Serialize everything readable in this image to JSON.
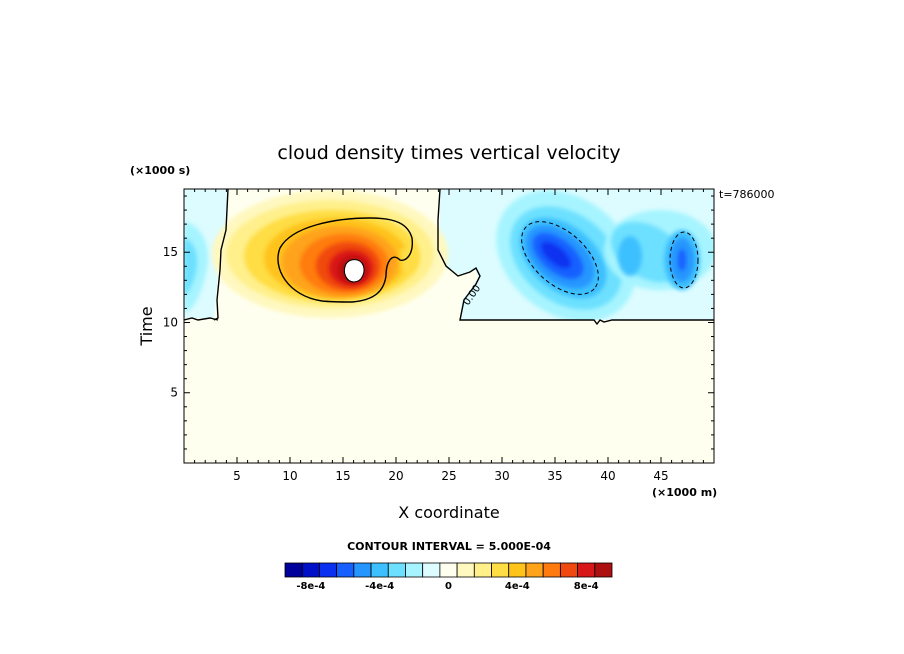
{
  "chart_data": {
    "type": "heatmap",
    "title": "cloud density times vertical velocity",
    "xlabel": "X coordinate",
    "ylabel": "Time",
    "x_units": "(×1000 m)",
    "y_units": "(×1000 s)",
    "time_stamp": "t=786000",
    "xlim": [
      0,
      50
    ],
    "ylim": [
      0,
      19.5
    ],
    "x_ticks": [
      5,
      10,
      15,
      20,
      25,
      30,
      35,
      40,
      45
    ],
    "y_ticks": [
      5,
      10,
      15
    ],
    "contour_label": "0.00",
    "contour_interval_text": "CONTOUR INTERVAL = 5.000E-04",
    "colorbar": {
      "colors": [
        "#00009a",
        "#0010c8",
        "#0a30f0",
        "#1560ff",
        "#2596ff",
        "#3ec0ff",
        "#6de0ff",
        "#a6f4ff",
        "#dcfcff",
        "#fffff0",
        "#fff8bf",
        "#fff08c",
        "#ffdd44",
        "#ffc31a",
        "#ffa31a",
        "#ff7b10",
        "#f04910",
        "#d81818",
        "#ad1010"
      ],
      "tick_labels": [
        "-8e-4",
        "-4e-4",
        "0",
        "4e-4",
        "8e-4"
      ],
      "tick_values": [
        -0.0008,
        -0.0004,
        0,
        0.0004,
        0.0008
      ]
    },
    "features": [
      {
        "sign": "positive",
        "x_center": 16.3,
        "y_center": 14.5,
        "peak": 0.001
      },
      {
        "sign": "negative",
        "x_center": 35.2,
        "y_center": 14.5,
        "peak": -0.0006
      },
      {
        "sign": "negative",
        "x_center": 46.5,
        "y_center": 15.0,
        "peak": -0.0005
      }
    ],
    "grid": false
  }
}
